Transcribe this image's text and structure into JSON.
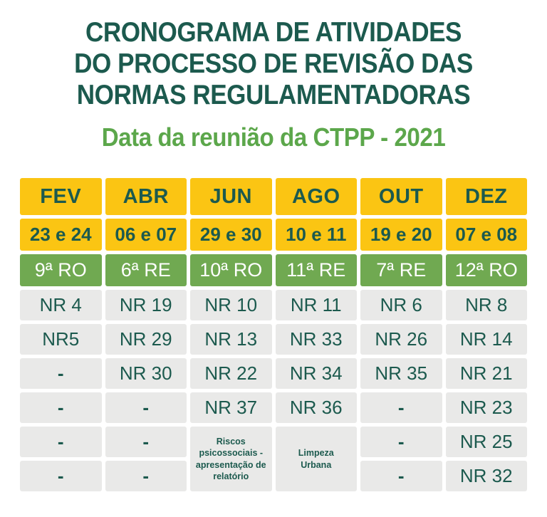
{
  "title": {
    "lines": [
      "CRONOGRAMA DE ATIVIDADES",
      "DO PROCESSO DE REVISÃO DAS",
      "NORMAS REGULAMENTADORAS"
    ]
  },
  "subtitle": "Data da reunião da CTPP - 2021",
  "colors": {
    "yellow": "#FBC513",
    "green": "#70A951",
    "gray": "#E9E9E8",
    "dark_green": "#1C5A4E",
    "light_green": "#5CA74B",
    "white": "#FFFFFF"
  },
  "table": {
    "months": [
      "FEV",
      "ABR",
      "JUN",
      "AGO",
      "OUT",
      "DEZ"
    ],
    "dates": [
      "23 e 24",
      "06 e 07",
      "29 e 30",
      "10 e 11",
      "19 e 20",
      "07 e 08"
    ],
    "sessions": [
      "9ª RO",
      "6ª RE",
      "10ª RO",
      "11ª RE",
      "7ª RE",
      "12ª RO"
    ],
    "nr_rows": [
      [
        "NR 4",
        "NR 19",
        "NR 10",
        "NR 11",
        "NR 6",
        "NR 8"
      ],
      [
        "NR5",
        "NR 29",
        "NR 13",
        "NR 33",
        "NR 26",
        "NR 14"
      ],
      [
        "-",
        "NR 30",
        "NR 22",
        "NR 34",
        "NR 35",
        "NR 21"
      ],
      [
        "-",
        "-",
        "NR 37",
        "NR 36",
        "-",
        "NR 23"
      ]
    ],
    "bottom": {
      "fev": [
        "-",
        "-"
      ],
      "abr": [
        "-",
        "-"
      ],
      "jun_span": "Riscos psicossociais - apresentação de relatório",
      "ago_span": "Limpeza Urbana",
      "out": [
        "-",
        "-"
      ],
      "dez": [
        "NR 25",
        "NR 32"
      ]
    }
  }
}
